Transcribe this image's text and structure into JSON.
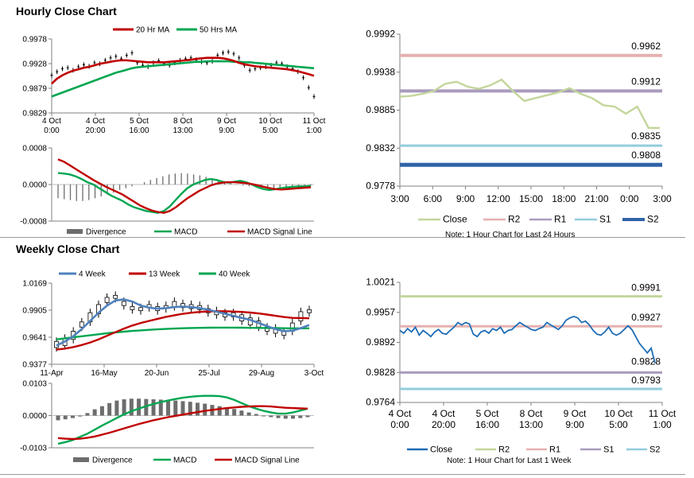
{
  "sections": {
    "hourly_title": "Hourly Close Chart",
    "weekly_title": "Weekly Close Chart"
  },
  "colors": {
    "ma_short": "#c00000",
    "ma_long": "#00a651",
    "ma4": "#4f81bd",
    "close_hourly": "#c3d69b",
    "close_weekly": "#1f6db5",
    "r2_hourly": "#e6b0b0",
    "r1_hourly": "#a99bbd",
    "s1_hourly": "#92cddc",
    "s2_hourly": "#2f63a8",
    "r2_weekly": "#c3d69b",
    "r1_weekly": "#e6b0b0",
    "s1_weekly": "#a99bbd",
    "s2_weekly": "#92cddc",
    "divergence": "#6d6d6d"
  },
  "chart_data": [
    {
      "id": "hourly_price",
      "type": "line",
      "legend": [
        "20 Hr MA",
        "50 Hrs MA"
      ],
      "x_tick_labels": [
        [
          "4 Oct",
          "0:00"
        ],
        [
          "4 Oct",
          "20:00"
        ],
        [
          "5 Oct",
          "16:00"
        ],
        [
          "8 Oct",
          "13:00"
        ],
        [
          "9 Oct",
          "9:00"
        ],
        [
          "10 Oct",
          "5:00"
        ],
        [
          "11 Oct",
          "1:00"
        ]
      ],
      "y_tick_labels": [
        "0.9978",
        "0.9928",
        "0.9879",
        "0.9829"
      ],
      "ylim": [
        0.9829,
        0.9978
      ],
      "price": [
        0.9905,
        0.9912,
        0.9918,
        0.992,
        0.9915,
        0.9922,
        0.9926,
        0.9923,
        0.993,
        0.9928,
        0.9935,
        0.994,
        0.9943,
        0.9938,
        0.9945,
        0.995,
        0.993,
        0.9925,
        0.9922,
        0.993,
        0.9934,
        0.9928,
        0.9925,
        0.993,
        0.9935,
        0.9938,
        0.994,
        0.9936,
        0.9932,
        0.993,
        0.9933,
        0.9945,
        0.995,
        0.9952,
        0.9948,
        0.994,
        0.9925,
        0.9915,
        0.9918,
        0.992,
        0.9922,
        0.9925,
        0.993,
        0.9928,
        0.9922,
        0.9918,
        0.9912,
        0.99,
        0.988,
        0.9862
      ],
      "ma20": [
        0.9888,
        0.9898,
        0.9905,
        0.991,
        0.9914,
        0.9917,
        0.992,
        0.9922,
        0.9925,
        0.9928,
        0.993,
        0.9932,
        0.9934,
        0.9935,
        0.9935,
        0.9934,
        0.9933,
        0.9932,
        0.9931,
        0.9931,
        0.9931,
        0.9931,
        0.9932,
        0.9933,
        0.9934,
        0.9935,
        0.9936,
        0.9938,
        0.9939,
        0.994,
        0.994,
        0.994,
        0.9939,
        0.9937,
        0.9934,
        0.993,
        0.9927,
        0.9925,
        0.9923,
        0.9922,
        0.9921,
        0.992,
        0.9919,
        0.9918,
        0.9917,
        0.9915,
        0.9913,
        0.991,
        0.9907,
        0.9904
      ],
      "ma50": [
        0.9862,
        0.9866,
        0.987,
        0.9874,
        0.9878,
        0.9882,
        0.9886,
        0.989,
        0.9894,
        0.9898,
        0.9902,
        0.9906,
        0.991,
        0.9913,
        0.9916,
        0.9919,
        0.9921,
        0.9922,
        0.9923,
        0.9924,
        0.9925,
        0.9926,
        0.9927,
        0.9928,
        0.9929,
        0.993,
        0.9931,
        0.9932,
        0.9932,
        0.9933,
        0.9933,
        0.9933,
        0.9933,
        0.9933,
        0.9932,
        0.9932,
        0.9931,
        0.9931,
        0.993,
        0.9929,
        0.9928,
        0.9927,
        0.9926,
        0.9925,
        0.9924,
        0.9923,
        0.9922,
        0.9921,
        0.992,
        0.9919
      ]
    },
    {
      "id": "hourly_macd",
      "type": "bar",
      "legend": [
        "Divergence",
        "MACD",
        "MACD Signal Line"
      ],
      "y_tick_labels": [
        "0.0008",
        "0.0000",
        "-0.0008"
      ],
      "ylim": [
        -0.0008,
        0.0008
      ],
      "divergence": [
        -0.0003,
        -0.00032,
        -0.00034,
        -0.00036,
        -0.00036,
        -0.00034,
        -0.0003,
        -0.00026,
        -0.00022,
        -0.00018,
        -0.00012,
        -8e-05,
        -4e-05,
        0.0,
        5e-05,
        0.0001,
        0.00014,
        0.00018,
        0.00022,
        0.00024,
        0.00025,
        0.00024,
        0.00022,
        0.0002,
        0.00017,
        0.00013,
        0.0001,
        7e-05,
        4e-05,
        1e-05,
        -2e-05,
        -4e-05,
        -6e-05,
        -8e-05,
        -9e-05,
        -0.0001,
        -0.0001,
        -9e-05,
        -8e-05,
        -6e-05,
        -4e-05,
        -2e-05
      ],
      "macd": [
        0.00025,
        0.00024,
        0.00022,
        0.00018,
        0.00012,
        5e-05,
        0.0,
        -8e-05,
        -0.00016,
        -0.00024,
        -0.0003,
        -0.00036,
        -0.00044,
        -0.0005,
        -0.00054,
        -0.00058,
        -0.0006,
        -0.00062,
        -0.00058,
        -0.00048,
        -0.00034,
        -0.0002,
        -8e-05,
        0.0,
        5e-05,
        0.0001,
        0.00012,
        0.0001,
        6e-05,
        4e-05,
        6e-05,
        8e-05,
        5e-05,
        0.0,
        -6e-05,
        -0.0001,
        -0.00012,
        -0.0001,
        -8e-05,
        -6e-05,
        -5e-05,
        -4e-05,
        -4e-05,
        -3e-05
      ],
      "signal": [
        0.00055,
        0.0005,
        0.00042,
        0.00034,
        0.00026,
        0.00018,
        0.0001,
        3e-05,
        -4e-05,
        -0.0001,
        -0.00016,
        -0.00022,
        -0.0003,
        -0.00038,
        -0.00046,
        -0.00052,
        -0.00057,
        -0.0006,
        -0.00062,
        -0.00058,
        -0.0005,
        -0.0004,
        -0.0003,
        -0.00022,
        -0.00014,
        -8e-05,
        -2e-05,
        2e-05,
        4e-05,
        5e-05,
        5e-05,
        4e-05,
        3e-05,
        1e-05,
        -2e-05,
        -5e-05,
        -8e-05,
        -0.0001,
        -0.00011,
        -0.0001,
        -9e-05,
        -8e-05,
        -7e-05,
        -6e-05
      ]
    },
    {
      "id": "hourly_pivot",
      "type": "line",
      "legend": [
        "Close",
        "R2",
        "R1",
        "S1",
        "S2"
      ],
      "note": "Note: 1 Hour Chart for Last 24 Hours",
      "x_tick_labels": [
        "3:00",
        "6:00",
        "9:00",
        "12:00",
        "15:00",
        "18:00",
        "21:00",
        "0:00",
        "3:00"
      ],
      "y_tick_labels": [
        "0.9992",
        "0.9938",
        "0.9885",
        "0.9832",
        "0.9778"
      ],
      "ylim": [
        0.9778,
        0.9992
      ],
      "close": [
        0.9904,
        0.9905,
        0.9908,
        0.9912,
        0.9922,
        0.9925,
        0.9918,
        0.9915,
        0.992,
        0.9928,
        0.9912,
        0.9898,
        0.9902,
        0.9906,
        0.991,
        0.9916,
        0.9908,
        0.9902,
        0.9892,
        0.989,
        0.988,
        0.989,
        0.986,
        0.986
      ],
      "levels": [
        {
          "name": "R2",
          "value": 0.9962,
          "label": "0.9962"
        },
        {
          "name": "R1",
          "value": 0.9912,
          "label": "0.9912"
        },
        {
          "name": "S1",
          "value": 0.9835,
          "label": "0.9835"
        },
        {
          "name": "S2",
          "value": 0.9808,
          "label": "0.9808"
        }
      ]
    },
    {
      "id": "weekly_price",
      "type": "line",
      "legend": [
        "4 Week",
        "13 Week",
        "40 Week"
      ],
      "x_tick_labels": [
        "11-Apr",
        "16-May",
        "20-Jun",
        "25-Jul",
        "29-Aug",
        "3-Oct"
      ],
      "y_tick_labels": [
        "1.0169",
        "0.9905",
        "0.9641",
        "0.9377"
      ],
      "ylim": [
        0.9377,
        1.0169
      ],
      "candles": [
        [
          0.96,
          0.954
        ],
        [
          0.963,
          0.956
        ],
        [
          0.97,
          0.962
        ],
        [
          0.979,
          0.974
        ],
        [
          0.988,
          0.979
        ],
        [
          0.996,
          0.987
        ],
        [
          1.003,
          0.998
        ],
        [
          1.005,
          1.002
        ],
        [
          0.999,
          0.995
        ],
        [
          0.994,
          0.991
        ],
        [
          0.993,
          0.99
        ],
        [
          0.996,
          0.993
        ],
        [
          0.994,
          0.99
        ],
        [
          0.995,
          0.992
        ],
        [
          0.999,
          0.994
        ],
        [
          0.997,
          0.993
        ],
        [
          0.996,
          0.992
        ],
        [
          0.995,
          0.991
        ],
        [
          0.992,
          0.988
        ],
        [
          0.99,
          0.986
        ],
        [
          0.988,
          0.984
        ],
        [
          0.988,
          0.984
        ],
        [
          0.986,
          0.98
        ],
        [
          0.983,
          0.976
        ],
        [
          0.98,
          0.974
        ],
        [
          0.974,
          0.97
        ],
        [
          0.973,
          0.968
        ],
        [
          0.97,
          0.966
        ],
        [
          0.978,
          0.97
        ],
        [
          0.989,
          0.98
        ],
        [
          0.991,
          0.988
        ]
      ],
      "ma4": [
        0.956,
        0.96,
        0.965,
        0.972,
        0.98,
        0.988,
        0.995,
        1.0,
        1.001,
        0.999,
        0.995,
        0.993,
        0.992,
        0.9925,
        0.9935,
        0.994,
        0.9935,
        0.9925,
        0.991,
        0.989,
        0.987,
        0.985,
        0.983,
        0.981,
        0.978,
        0.975,
        0.972,
        0.97,
        0.9705,
        0.973,
        0.976
      ],
      "ma13": [
        0.952,
        0.953,
        0.9545,
        0.9565,
        0.959,
        0.962,
        0.9655,
        0.969,
        0.9725,
        0.9755,
        0.978,
        0.98,
        0.982,
        0.984,
        0.9855,
        0.987,
        0.988,
        0.9888,
        0.9893,
        0.9895,
        0.9895,
        0.9892,
        0.9888,
        0.9882,
        0.9873,
        0.9862,
        0.985,
        0.9838,
        0.983,
        0.9828,
        0.9826
      ],
      "ma40": [
        0.962,
        0.963,
        0.964,
        0.965,
        0.966,
        0.967,
        0.968,
        0.9688,
        0.9695,
        0.9702,
        0.9708,
        0.9713,
        0.9718,
        0.9722,
        0.9726,
        0.9729,
        0.9731,
        0.9733,
        0.9734,
        0.9735,
        0.9735,
        0.9735,
        0.9734,
        0.9733,
        0.9732,
        0.9731,
        0.973,
        0.9729,
        0.9728,
        0.9728,
        0.9728
      ]
    },
    {
      "id": "weekly_macd",
      "type": "bar",
      "legend": [
        "Divergence",
        "MACD",
        "MACD Signal Line"
      ],
      "y_tick_labels": [
        "0.0103",
        "0.0000",
        "-0.0103"
      ],
      "ylim": [
        -0.0103,
        0.0103
      ],
      "divergence": [
        -0.0015,
        -0.0012,
        -0.0008,
        -0.0003,
        0.0008,
        0.002,
        0.003,
        0.004,
        0.0048,
        0.0052,
        0.0054,
        0.0054,
        0.0053,
        0.0052,
        0.0051,
        0.005,
        0.0048,
        0.0046,
        0.0044,
        0.0041,
        0.0038,
        0.0034,
        0.003,
        0.0026,
        0.0021,
        0.0016,
        0.001,
        0.0005,
        0.0,
        -0.0005,
        -0.0008,
        -0.001,
        -0.001,
        -0.0008,
        -0.0005
      ],
      "macd": [
        -0.009,
        -0.0085,
        -0.0078,
        -0.0068,
        -0.0058,
        -0.0045,
        -0.0032,
        -0.002,
        -0.0008,
        0.0004,
        0.0014,
        0.0022,
        0.003,
        0.0037,
        0.0043,
        0.0048,
        0.0053,
        0.0057,
        0.006,
        0.0062,
        0.0063,
        0.0063,
        0.0062,
        0.0058,
        0.005,
        0.004,
        0.003,
        0.0022,
        0.0015,
        0.001,
        0.0006,
        0.0006,
        0.001,
        0.0016,
        0.0022
      ],
      "signal": [
        -0.0072,
        -0.0074,
        -0.0075,
        -0.0074,
        -0.0071,
        -0.0067,
        -0.0061,
        -0.0055,
        -0.0048,
        -0.0041,
        -0.0034,
        -0.0027,
        -0.0021,
        -0.0015,
        -0.001,
        -0.0005,
        -0.0001,
        0.0003,
        0.0007,
        0.0011,
        0.0015,
        0.0018,
        0.0021,
        0.0024,
        0.0026,
        0.0028,
        0.0029,
        0.003,
        0.003,
        0.0029,
        0.0027,
        0.0025,
        0.0024,
        0.0023,
        0.0022
      ]
    },
    {
      "id": "weekly_pivot",
      "type": "line",
      "legend": [
        "Close",
        "R2",
        "R1",
        "S1",
        "S2"
      ],
      "note": "Note: 1 Hour Chart for Last 1 Week",
      "x_tick_labels": [
        [
          "4 Oct",
          "0:00"
        ],
        [
          "4 Oct",
          "20:00"
        ],
        [
          "5 Oct",
          "16:00"
        ],
        [
          "8 Oct",
          "13:00"
        ],
        [
          "9 Oct",
          "9:00"
        ],
        [
          "10 Oct",
          "5:00"
        ],
        [
          "11 Oct",
          "1:00"
        ]
      ],
      "y_tick_labels": [
        "1.0021",
        "0.9957",
        "0.9892",
        "0.9828",
        "0.9764"
      ],
      "ylim": [
        0.9764,
        1.0021
      ],
      "close": [
        0.9918,
        0.9912,
        0.9922,
        0.9915,
        0.9925,
        0.9908,
        0.9918,
        0.9912,
        0.9905,
        0.9915,
        0.992,
        0.9912,
        0.991,
        0.9918,
        0.9925,
        0.9935,
        0.993,
        0.9935,
        0.9932,
        0.991,
        0.9905,
        0.9915,
        0.9918,
        0.9912,
        0.9922,
        0.9918,
        0.9925,
        0.9912,
        0.9918,
        0.992,
        0.9928,
        0.9935,
        0.993,
        0.9925,
        0.992,
        0.9918,
        0.9922,
        0.9925,
        0.9935,
        0.993,
        0.9925,
        0.992,
        0.9928,
        0.994,
        0.9945,
        0.9948,
        0.9945,
        0.9935,
        0.9938,
        0.993,
        0.9918,
        0.991,
        0.9908,
        0.9915,
        0.9925,
        0.9912,
        0.9908,
        0.9912,
        0.992,
        0.9928,
        0.992,
        0.9905,
        0.989,
        0.988,
        0.987,
        0.988,
        0.9848
      ],
      "levels": [
        {
          "name": "R2",
          "value": 0.9991,
          "label": "0.9991"
        },
        {
          "name": "R1",
          "value": 0.9927,
          "label": "0.9927"
        },
        {
          "name": "S1",
          "value": 0.9828,
          "label": "0.9828"
        },
        {
          "name": "S2",
          "value": 0.9793,
          "label": "0.9793"
        }
      ]
    }
  ]
}
